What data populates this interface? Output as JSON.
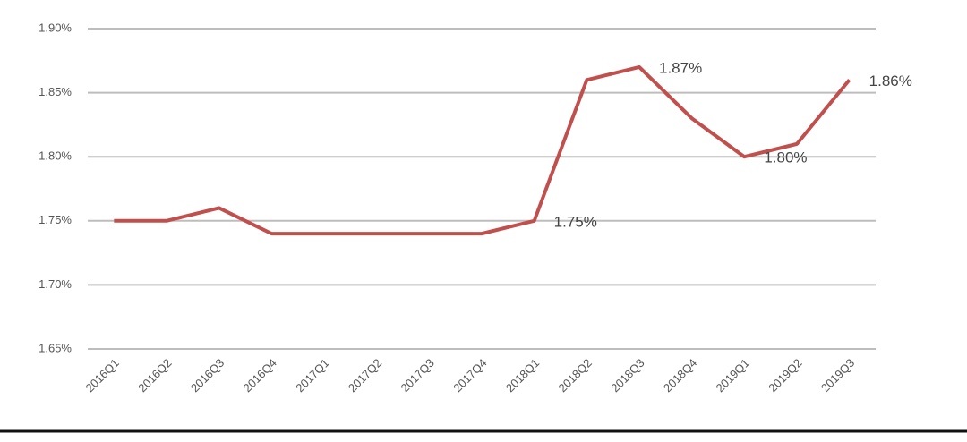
{
  "chart_data": {
    "type": "line",
    "categories": [
      "2016Q1",
      "2016Q2",
      "2016Q3",
      "2016Q4",
      "2017Q1",
      "2017Q2",
      "2017Q3",
      "2017Q4",
      "2018Q1",
      "2018Q2",
      "2018Q3",
      "2018Q4",
      "2019Q1",
      "2019Q2",
      "2019Q3"
    ],
    "series": [
      {
        "color": "#c0504d",
        "values": [
          1.75,
          1.75,
          1.76,
          1.74,
          1.74,
          1.74,
          1.74,
          1.74,
          1.75,
          1.86,
          1.87,
          1.83,
          1.8,
          1.81,
          1.86
        ],
        "value_labels": [
          null,
          null,
          null,
          null,
          null,
          null,
          null,
          null,
          "1.75%",
          null,
          "1.87%",
          null,
          "1.80%",
          null,
          "1.86%"
        ]
      }
    ],
    "ylim": [
      1.65,
      1.9
    ],
    "yticks": [
      {
        "value": 1.65,
        "label": "1.65%"
      },
      {
        "value": 1.7,
        "label": "1.70%"
      },
      {
        "value": 1.75,
        "label": "1.75%"
      },
      {
        "value": 1.8,
        "label": "1.80%"
      },
      {
        "value": 1.85,
        "label": "1.85%"
      },
      {
        "value": 1.9,
        "label": "1.90%"
      }
    ],
    "grid": true
  }
}
